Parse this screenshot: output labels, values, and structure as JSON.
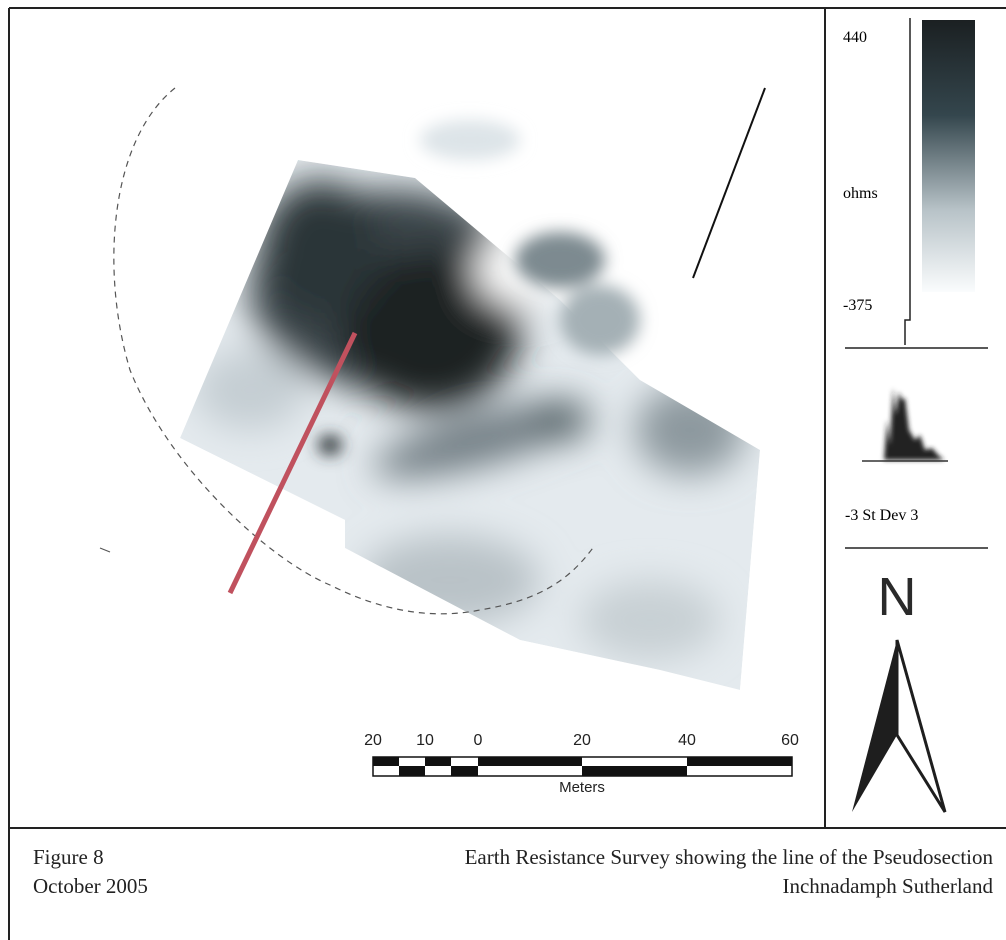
{
  "legend": {
    "max": "440",
    "unit": "ohms",
    "min": "-375",
    "histogram_label": "-3 St Dev 3"
  },
  "north": "N",
  "scale_bar": {
    "ticks": [
      "20",
      "10",
      "0",
      "20",
      "40",
      "60"
    ],
    "unit": "Meters"
  },
  "caption": {
    "figure": "Figure 8",
    "date": "October 2005",
    "title": "Earth Resistance Survey showing the line of the Pseudosection",
    "location": "Inchnadamph Sutherland"
  }
}
